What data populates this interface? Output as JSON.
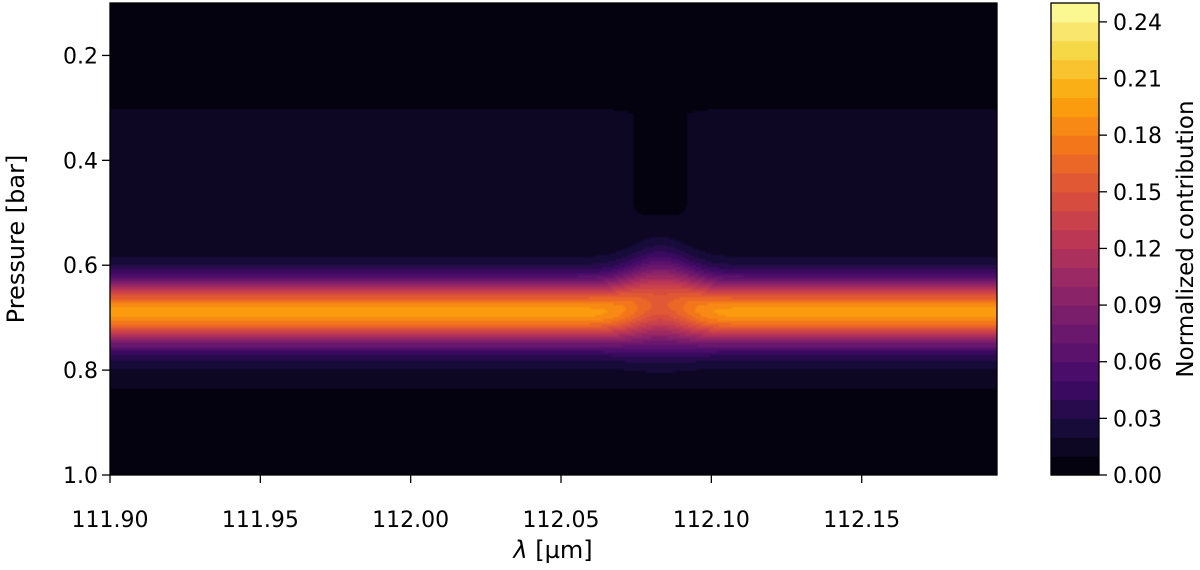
{
  "chart_data": {
    "type": "heatmap",
    "subtype": "filled-contour",
    "title": "",
    "xlabel": "λ [µm]",
    "xlabel_parts": {
      "symbol": "λ",
      "unit": " [µm]"
    },
    "ylabel": "Pressure [bar]",
    "xlim": [
      111.9,
      112.195
    ],
    "ylim": [
      1.0,
      0.1
    ],
    "y_inverted": true,
    "x_ticks": [
      111.9,
      111.95,
      112.0,
      112.05,
      112.1,
      112.15
    ],
    "x_tick_labels": [
      "111.90",
      "111.95",
      "112.00",
      "112.05",
      "112.10",
      "112.15"
    ],
    "y_ticks": [
      0.2,
      0.4,
      0.6,
      0.8,
      1.0
    ],
    "y_tick_labels": [
      "0.2",
      "0.4",
      "0.6",
      "0.8",
      "1.0"
    ],
    "colormap": "inferno",
    "colorbar": {
      "label": "Normalized contribution",
      "range": [
        0.0,
        0.25
      ],
      "levels": 25,
      "ticks": [
        0.0,
        0.03,
        0.06,
        0.09,
        0.12,
        0.15,
        0.18,
        0.21,
        0.24
      ],
      "tick_labels": [
        "0.00",
        "0.03",
        "0.06",
        "0.09",
        "0.12",
        "0.15",
        "0.18",
        "0.21",
        "0.24"
      ]
    },
    "field": {
      "description_of_shape": "horizontal band of contribution peaking at ~0.69 bar with max ~0.18; near a spectral line at ~112.083 µm the band weakens and shifts slightly upward",
      "peak_pressure": 0.69,
      "peak_value": 0.182,
      "band_width_bar": 0.06,
      "tail_value": 0.012,
      "tail_extent_bar": [
        0.26,
        0.86
      ],
      "line_center_um": 112.083,
      "line_half_width_um": 0.012,
      "line_peak_value": 0.15,
      "line_pressure_shift_bar": -0.015
    }
  }
}
